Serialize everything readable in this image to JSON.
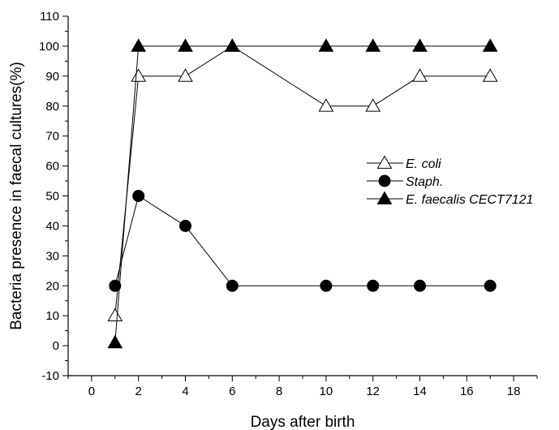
{
  "chart_data": {
    "type": "line",
    "title": "",
    "xlabel": "Days after birth",
    "ylabel": "Bacteria presence in faecal cultures(%)",
    "xlim": [
      -1,
      19
    ],
    "ylim": [
      -10,
      110
    ],
    "x_ticks": [
      0,
      2,
      4,
      6,
      8,
      10,
      12,
      14,
      16,
      18
    ],
    "y_ticks": [
      -10,
      0,
      10,
      20,
      30,
      40,
      50,
      60,
      70,
      80,
      90,
      100,
      110
    ],
    "grid": false,
    "legend_position": "right",
    "series": [
      {
        "name": "E. coli",
        "marker": "triangle-open",
        "points": [
          [
            1,
            10
          ],
          [
            2,
            90
          ],
          [
            4,
            90
          ],
          [
            6,
            100
          ],
          [
            10,
            80
          ],
          [
            12,
            80
          ],
          [
            14,
            90
          ],
          [
            17,
            90
          ]
        ]
      },
      {
        "name": "Staph.",
        "marker": "circle-filled",
        "points": [
          [
            1,
            20
          ],
          [
            2,
            50
          ],
          [
            4,
            40
          ],
          [
            6,
            20
          ],
          [
            10,
            20
          ],
          [
            12,
            20
          ],
          [
            14,
            20
          ],
          [
            17,
            20
          ]
        ]
      },
      {
        "name": "E. faecalis CECT7121",
        "marker": "triangle-filled",
        "points": [
          [
            1,
            1
          ],
          [
            2,
            100
          ],
          [
            4,
            100
          ],
          [
            6,
            100
          ],
          [
            10,
            100
          ],
          [
            12,
            100
          ],
          [
            14,
            100
          ],
          [
            17,
            100
          ]
        ]
      }
    ]
  }
}
